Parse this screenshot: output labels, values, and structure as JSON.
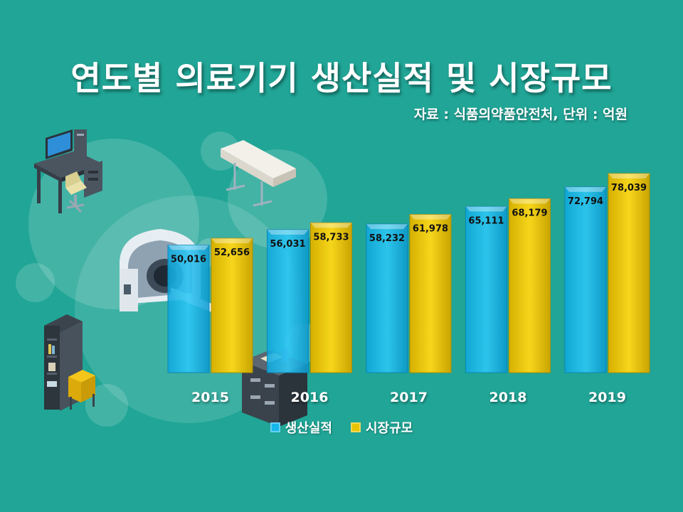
{
  "title": "연도별 의료기기 생산실적 및 시장규모",
  "source_note": "자료 : 식품의약품안전처, 단위 : 억원",
  "colors": {
    "background": "#20a596",
    "production": "#16b7ea",
    "market": "#e8c400"
  },
  "chart_data": {
    "type": "bar",
    "categories": [
      "2015",
      "2016",
      "2017",
      "2018",
      "2019"
    ],
    "series": [
      {
        "name": "생산실적",
        "values": [
          50016,
          56031,
          58232,
          65111,
          72794
        ],
        "labels": [
          "50,016",
          "56,031",
          "58,232",
          "65,111",
          "72,794"
        ]
      },
      {
        "name": "시장규모",
        "values": [
          52656,
          58733,
          61978,
          68179,
          78039
        ],
        "labels": [
          "52,656",
          "58,733",
          "61,978",
          "68,179",
          "78,039"
        ]
      }
    ],
    "title": "연도별 의료기기 생산실적 및 시장규모",
    "unit": "억원",
    "ylim": [
      0,
      78039
    ],
    "grid": false,
    "legend_position": "bottom"
  },
  "legend": {
    "production": "생산실적",
    "market": "시장규모"
  },
  "decorations": [
    "computer-desk-icon",
    "exam-table-icon",
    "mri-scanner-icon",
    "bookshelf-icon",
    "file-cabinet-icon"
  ]
}
